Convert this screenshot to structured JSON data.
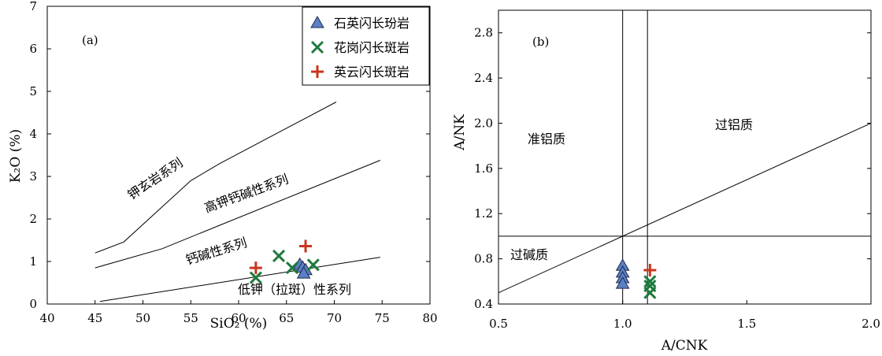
{
  "chart_data": [
    {
      "type": "scatter",
      "panel_label": "(a)",
      "xlabel": "SiO₂ (%)",
      "ylabel": "K₂O (%)",
      "xlim": [
        40,
        80
      ],
      "ylim": [
        0,
        7
      ],
      "xticks": [
        "40",
        "45",
        "50",
        "55",
        "60",
        "65",
        "70",
        "75",
        "80"
      ],
      "yticks": [
        "0",
        "1",
        "2",
        "3",
        "4",
        "5",
        "6",
        "7"
      ],
      "boundaries": [
        {
          "points": [
            [
              45,
              1.2
            ],
            [
              48,
              1.46
            ],
            [
              55,
              2.9
            ],
            [
              58,
              3.3
            ],
            [
              70.2,
              4.75
            ]
          ]
        },
        {
          "points": [
            [
              45,
              0.85
            ],
            [
              52,
              1.3
            ],
            [
              58,
              1.85
            ],
            [
              74.8,
              3.38
            ]
          ]
        },
        {
          "points": [
            [
              45.5,
              0.06
            ],
            [
              74.8,
              1.1
            ]
          ]
        }
      ],
      "regions": [
        "钾玄岩系列",
        "高钾钙碱性系列",
        "钙碱性系列",
        "低钾（拉斑）性系列"
      ],
      "series": [
        {
          "name": "石英闪长玢岩",
          "marker": "triangle",
          "color": "#5b7fc4",
          "points": [
            [
              66.4,
              0.93
            ],
            [
              66.7,
              0.86
            ],
            [
              67.0,
              0.8
            ],
            [
              66.8,
              0.72
            ]
          ]
        },
        {
          "name": "花岗闪长斑岩",
          "marker": "x",
          "color": "#1e7a3c",
          "points": [
            [
              61.8,
              0.62
            ],
            [
              64.2,
              1.13
            ],
            [
              65.6,
              0.85
            ],
            [
              67.8,
              0.92
            ]
          ]
        },
        {
          "name": "英云闪长斑岩",
          "marker": "plus",
          "color": "#c8361e",
          "points": [
            [
              61.8,
              0.85
            ],
            [
              67.0,
              1.36
            ]
          ]
        }
      ],
      "legend_position": "top-right"
    },
    {
      "type": "scatter",
      "panel_label": "(b)",
      "xlabel": "A/CNK",
      "ylabel": "A/NK",
      "xlim": [
        0.5,
        2.0
      ],
      "ylim": [
        0.4,
        3.0
      ],
      "xticks": [
        "0.5",
        "1.0",
        "1.5",
        "2.0"
      ],
      "yticks": [
        "0.4",
        "0.8",
        "1.2",
        "1.6",
        "2.0",
        "2.4",
        "2.8"
      ],
      "vertical_lines": [
        1.0,
        1.1
      ],
      "horizontal_lines": [
        1.0
      ],
      "diagonal": [
        [
          0.5,
          0.5
        ],
        [
          2.0,
          2.0
        ]
      ],
      "regions": [
        "准铝质",
        "过铝质",
        "过碱质"
      ],
      "series": [
        {
          "name": "石英闪长玢岩",
          "marker": "triangle",
          "color": "#5b7fc4",
          "points": [
            [
              1.0,
              0.74
            ],
            [
              1.0,
              0.68
            ],
            [
              1.0,
              0.63
            ],
            [
              1.0,
              0.58
            ]
          ]
        },
        {
          "name": "花岗闪长斑岩",
          "marker": "x",
          "color": "#1e7a3c",
          "points": [
            [
              1.11,
              0.6
            ],
            [
              1.11,
              0.56
            ],
            [
              1.11,
              0.5
            ]
          ]
        },
        {
          "name": "英云闪长斑岩",
          "marker": "plus",
          "color": "#c8361e",
          "points": [
            [
              1.11,
              0.7
            ]
          ]
        }
      ]
    }
  ]
}
